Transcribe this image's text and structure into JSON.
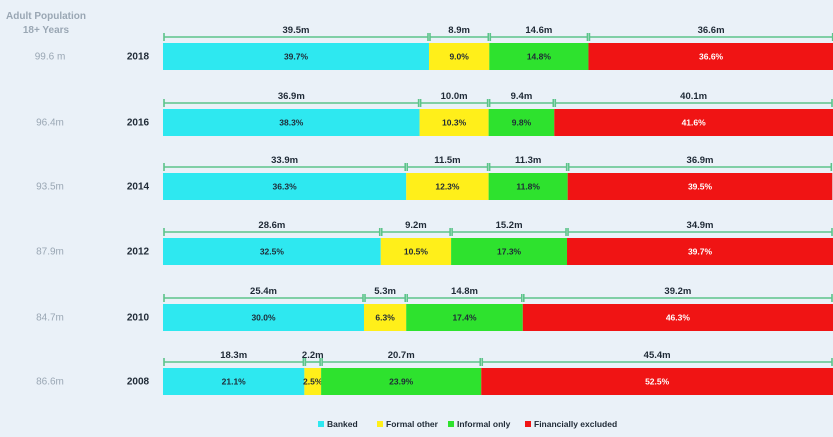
{
  "header": {
    "line1": "Adult Population",
    "line2": "18+ Years"
  },
  "colors": {
    "Banked": "#2ee8f0",
    "Formal other": "#ffef1a",
    "Informal only": "#2ee22e",
    "Financially excluded": "#f01414",
    "bracket": "#5cc48a"
  },
  "chart_data": {
    "type": "bar",
    "orientation": "horizontal",
    "stacked": true,
    "categories": [
      "2018",
      "2016",
      "2014",
      "2012",
      "2010",
      "2008"
    ],
    "population": [
      "99.6 m",
      "96.4m",
      "93.5m",
      "87.9m",
      "84.7m",
      "86.6m"
    ],
    "series": [
      {
        "name": "Banked",
        "values": [
          39.7,
          38.3,
          36.3,
          32.5,
          30.0,
          21.1
        ],
        "absolute": [
          "39.5m",
          "36.9m",
          "33.9m",
          "28.6m",
          "25.4m",
          "18.3m"
        ]
      },
      {
        "name": "Formal other",
        "values": [
          9.0,
          10.3,
          12.3,
          10.5,
          6.3,
          2.5
        ],
        "absolute": [
          "8.9m",
          "10.0m",
          "11.5m",
          "9.2m",
          "5.3m",
          "2.2m"
        ]
      },
      {
        "name": "Informal only",
        "values": [
          14.8,
          9.8,
          11.8,
          17.3,
          17.4,
          23.9
        ],
        "absolute": [
          "14.6m",
          "9.4m",
          "11.3m",
          "15.2m",
          "14.8m",
          "20.7m"
        ]
      },
      {
        "name": "Financially excluded",
        "values": [
          36.6,
          41.6,
          39.5,
          39.7,
          46.3,
          52.5
        ],
        "absolute": [
          "36.6m",
          "40.1m",
          "36.9m",
          "34.9m",
          "39.2m",
          "45.4m"
        ]
      }
    ],
    "xlim": [
      0,
      100
    ],
    "legend": "bottom"
  }
}
